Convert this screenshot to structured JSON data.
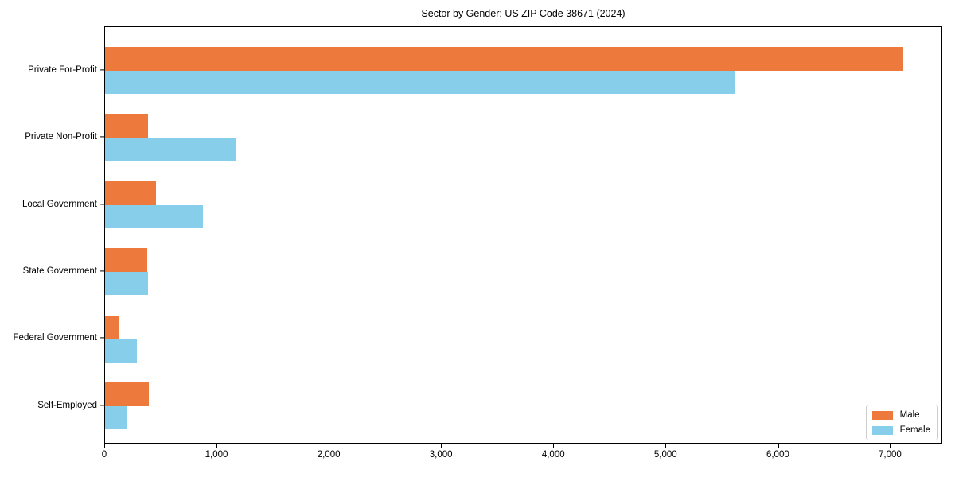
{
  "page": {
    "background": "#ffffff"
  },
  "chart_data": {
    "type": "bar",
    "orientation": "horizontal",
    "title": "Sector by Gender: US ZIP Code 38671 (2024)",
    "categories": [
      "Private For-Profit",
      "Private Non-Profit",
      "Local Government",
      "State Government",
      "Federal Government",
      "Self-Employed"
    ],
    "series": [
      {
        "name": "Male",
        "color": "#ED7A3C",
        "values": [
          7110,
          385,
          455,
          375,
          125,
          390
        ]
      },
      {
        "name": "Female",
        "color": "#87CEEB",
        "values": [
          5610,
          1170,
          875,
          385,
          282,
          200
        ]
      }
    ],
    "xlabel": "",
    "ylabel": "",
    "xlim": [
      0,
      7465
    ],
    "x_ticks": [
      0,
      1000,
      2000,
      3000,
      4000,
      5000,
      6000,
      7000
    ],
    "x_tick_labels": [
      "0",
      "1,000",
      "2,000",
      "3,000",
      "4,000",
      "5,000",
      "6,000",
      "7,000"
    ],
    "grid": false,
    "legend": {
      "position": "lower-right",
      "entries": [
        "Male",
        "Female"
      ]
    }
  }
}
